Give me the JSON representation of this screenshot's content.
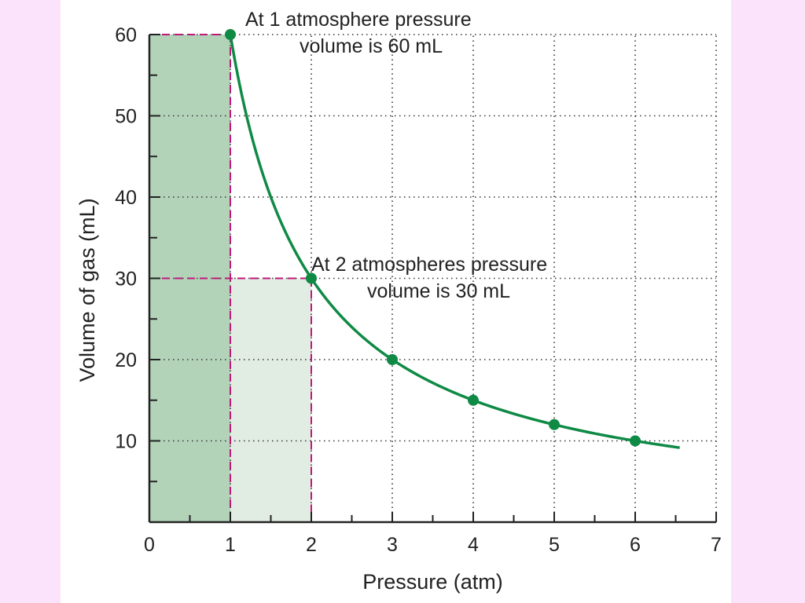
{
  "colors": {
    "page_background": "#fbe3fb",
    "slide_background": "#ffffff",
    "curve": "#0f8a45",
    "shade_dark": "#b3d3b9",
    "shade_light": "#e1ece3",
    "guide_lines": "#c2187a",
    "grid": "#333333"
  },
  "chart_data": {
    "type": "line",
    "title": "",
    "xlabel": "Pressure (atm)",
    "ylabel": "Volume of gas (mL)",
    "xlim": [
      0,
      7
    ],
    "ylim": [
      0,
      60
    ],
    "x_ticks": [
      0,
      1,
      2,
      3,
      4,
      5,
      6,
      7
    ],
    "y_ticks": [
      10,
      20,
      30,
      40,
      50,
      60
    ],
    "grid": true,
    "series": [
      {
        "relation": "P × V = 60",
        "x": [
          1,
          2,
          3,
          4,
          5,
          6
        ],
        "y": [
          60,
          30,
          20,
          15,
          12,
          10
        ],
        "curve_domain": [
          1,
          6.55
        ]
      }
    ],
    "shaded_regions": [
      {
        "x": [
          0,
          1
        ],
        "y": [
          0,
          60
        ],
        "shade": "dark"
      },
      {
        "x": [
          1,
          2
        ],
        "y": [
          0,
          30
        ],
        "shade": "light"
      }
    ],
    "annotations": [
      {
        "point": [
          1,
          60
        ],
        "lines": [
          "At 1 atmosphere pressure",
          "volume is 60 mL"
        ]
      },
      {
        "point": [
          2,
          30
        ],
        "lines": [
          "At 2 atmospheres pressure",
          "volume is 30 mL"
        ]
      }
    ]
  }
}
